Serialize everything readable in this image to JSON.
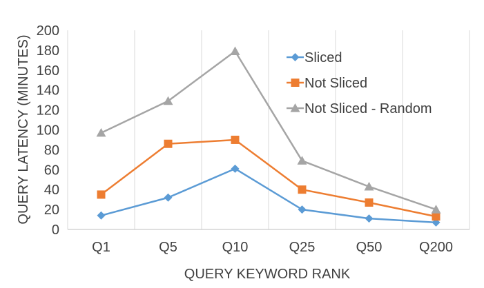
{
  "chart_data": {
    "type": "line",
    "title": "",
    "xlabel": "QUERY KEYWORD RANK",
    "ylabel": "QUERY LATENCY (MINUTES)",
    "ylim": [
      0,
      200
    ],
    "yticks": [
      0,
      20,
      40,
      60,
      80,
      100,
      120,
      140,
      160,
      180,
      200
    ],
    "categories": [
      "Q1",
      "Q5",
      "Q10",
      "Q25",
      "Q50",
      "Q200"
    ],
    "grid": "vertical",
    "legend_position": "top-right",
    "series": [
      {
        "name": "Sliced",
        "values": [
          14,
          32,
          61,
          20,
          11,
          7
        ],
        "color": "#5b9bd5",
        "marker": "diamond"
      },
      {
        "name": "Not Sliced",
        "values": [
          35,
          86,
          90,
          40,
          27,
          13
        ],
        "color": "#ed7d31",
        "marker": "square"
      },
      {
        "name": "Not Sliced - Random",
        "values": [
          97,
          129,
          179,
          69,
          43,
          20
        ],
        "color": "#a5a5a5",
        "marker": "triangle"
      }
    ]
  }
}
